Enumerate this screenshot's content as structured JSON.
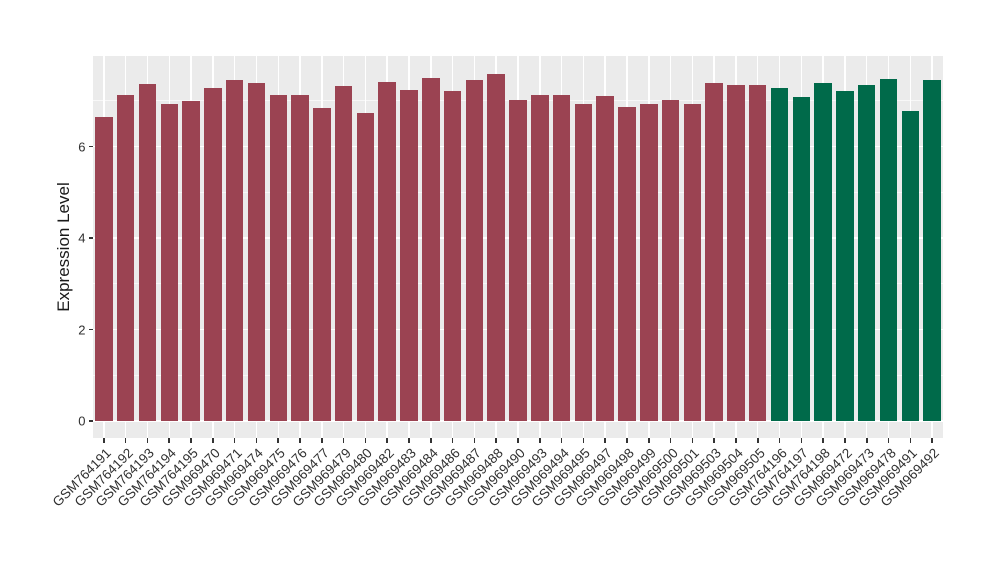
{
  "figure": {
    "background": "#ffffff",
    "panel_background": "#ebebeb",
    "grid_major_color": "#ffffff",
    "grid_minor_color": "rgba(255,255,255,0.65)",
    "axis_text_color": "#303030",
    "tick_mark_color": "#333333"
  },
  "chart_data": {
    "type": "bar",
    "title": "",
    "xlabel": "",
    "ylabel": "Expression Level",
    "legend_position": "none",
    "grid": true,
    "yticks": [
      0,
      2,
      4,
      6
    ],
    "yticks_minor": [
      1,
      3,
      5,
      7
    ],
    "ylim": [
      -0.37,
      7.98
    ],
    "categories": [
      "GSM764191",
      "GSM764192",
      "GSM764193",
      "GSM764194",
      "GSM764195",
      "GSM969470",
      "GSM969471",
      "GSM969474",
      "GSM969475",
      "GSM969476",
      "GSM969477",
      "GSM969479",
      "GSM969480",
      "GSM969482",
      "GSM969483",
      "GSM969484",
      "GSM969486",
      "GSM969487",
      "GSM969488",
      "GSM969490",
      "GSM969493",
      "GSM969494",
      "GSM969495",
      "GSM969497",
      "GSM969498",
      "GSM969499",
      "GSM969500",
      "GSM969501",
      "GSM969503",
      "GSM969504",
      "GSM969505",
      "GSM764196",
      "GSM764197",
      "GSM764198",
      "GSM969472",
      "GSM969473",
      "GSM969478",
      "GSM969491",
      "GSM969492"
    ],
    "values": [
      6.64,
      7.13,
      7.36,
      6.92,
      7.0,
      7.27,
      7.46,
      7.38,
      7.13,
      7.12,
      6.85,
      7.33,
      6.73,
      7.42,
      7.23,
      7.49,
      7.21,
      7.46,
      7.58,
      7.02,
      7.13,
      7.12,
      6.92,
      7.1,
      6.87,
      6.94,
      7.02,
      6.92,
      7.4,
      7.34,
      7.34,
      7.28,
      7.08,
      7.4,
      7.22,
      7.34,
      7.48,
      6.78,
      7.45
    ],
    "group_index": [
      0,
      0,
      0,
      0,
      0,
      0,
      0,
      0,
      0,
      0,
      0,
      0,
      0,
      0,
      0,
      0,
      0,
      0,
      0,
      0,
      0,
      0,
      0,
      0,
      0,
      0,
      0,
      0,
      0,
      0,
      0,
      1,
      1,
      1,
      1,
      1,
      1,
      1,
      1
    ],
    "group_colors": [
      "#9b4352",
      "#006a4a"
    ]
  }
}
